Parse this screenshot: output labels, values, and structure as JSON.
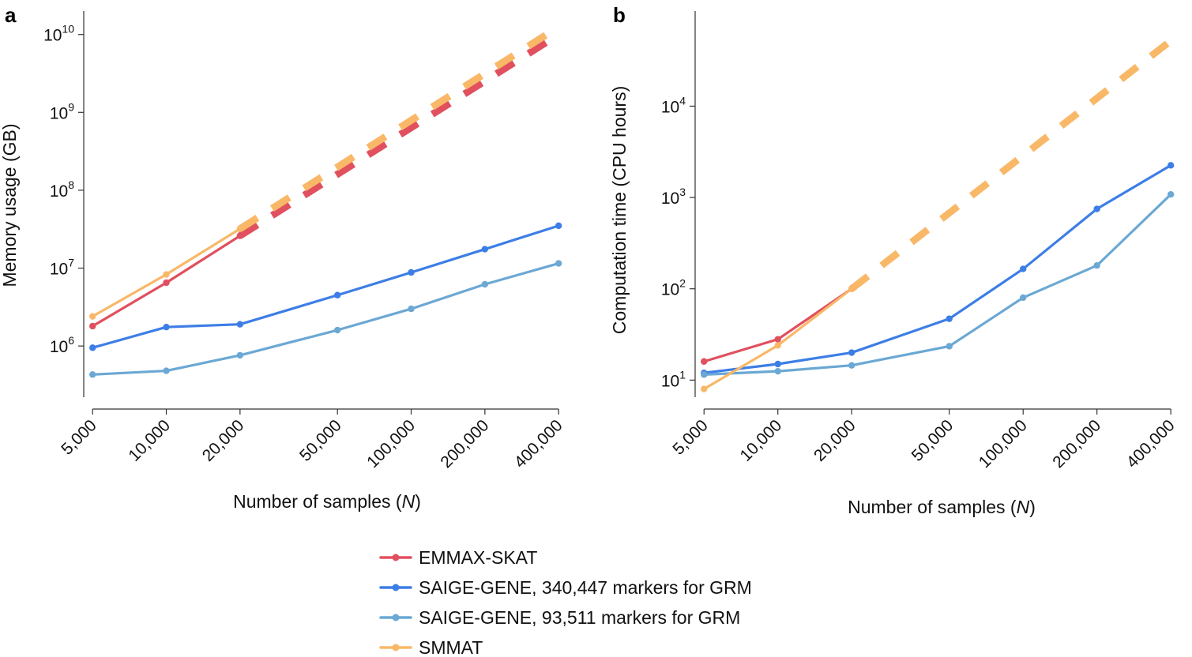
{
  "chart_data": [
    {
      "panel": "a",
      "type": "line",
      "ylabel": "Memory usage (GB)",
      "xlabel": "Number of samples (N)",
      "xscale": "log",
      "yscale": "log",
      "x_ticks": [
        5000,
        10000,
        20000,
        50000,
        100000,
        200000,
        400000
      ],
      "x_tick_labels": [
        "5,000",
        "10,000",
        "20,000",
        "50,000",
        "100,000",
        "200,000",
        "400,000"
      ],
      "y_ticks": [
        1000000,
        10000000,
        100000000,
        1000000000,
        10000000000
      ],
      "y_tick_labels": [
        {
          "base": "10",
          "exp": "6"
        },
        {
          "base": "10",
          "exp": "7"
        },
        {
          "base": "10",
          "exp": "8"
        },
        {
          "base": "10",
          "exp": "9"
        },
        {
          "base": "10",
          "exp": "10"
        }
      ],
      "ylim": [
        220000,
        20000000000
      ],
      "xlim": [
        4600,
        440000
      ],
      "series": [
        {
          "key": "emmax",
          "color": "#e0505e",
          "x": [
            5000,
            10000,
            20000
          ],
          "y": [
            1800000,
            6500000,
            26000000
          ],
          "extrapolated": {
            "x": [
              20000,
              400000
            ],
            "y": [
              26000000,
              10000000000
            ]
          }
        },
        {
          "key": "saige340",
          "color": "#3d7ee6",
          "x": [
            5000,
            10000,
            20000,
            50000,
            100000,
            200000,
            400000
          ],
          "y": [
            950000,
            1750000,
            1900000,
            4500000,
            8800000,
            17500000,
            35000000
          ]
        },
        {
          "key": "saige93",
          "color": "#6ba8d4",
          "x": [
            5000,
            10000,
            20000,
            50000,
            100000,
            200000,
            400000
          ],
          "y": [
            430000,
            480000,
            760000,
            1600000,
            3000000,
            6200000,
            11500000
          ]
        },
        {
          "key": "smmat",
          "color": "#f9b868",
          "x": [
            5000,
            10000,
            20000
          ],
          "y": [
            2400000,
            8300000,
            32000000
          ],
          "extrapolated": {
            "x": [
              20000,
              400000
            ],
            "y": [
              32000000,
              12500000000
            ]
          }
        }
      ]
    },
    {
      "panel": "b",
      "type": "line",
      "ylabel": "Computation time (CPU hours)",
      "xlabel": "Number of samples (N)",
      "xscale": "log",
      "yscale": "log",
      "x_ticks": [
        5000,
        10000,
        20000,
        50000,
        100000,
        200000,
        400000
      ],
      "x_tick_labels": [
        "5,000",
        "10,000",
        "20,000",
        "50,000",
        "100,000",
        "200,000",
        "400,000"
      ],
      "y_ticks": [
        10,
        100,
        1000,
        10000
      ],
      "y_tick_labels": [
        {
          "base": "10",
          "exp": "1"
        },
        {
          "base": "10",
          "exp": "2"
        },
        {
          "base": "10",
          "exp": "3"
        },
        {
          "base": "10",
          "exp": "4"
        }
      ],
      "ylim": [
        6.5,
        110000
      ],
      "xlim": [
        4600,
        440000
      ],
      "series": [
        {
          "key": "emmax",
          "color": "#e0505e",
          "x": [
            5000,
            10000,
            20000
          ],
          "y": [
            16,
            28,
            100
          ]
        },
        {
          "key": "saige340",
          "color": "#3d7ee6",
          "x": [
            5000,
            10000,
            20000,
            50000,
            100000,
            200000,
            400000
          ],
          "y": [
            12,
            15,
            20,
            47,
            165,
            750,
            2250
          ]
        },
        {
          "key": "saige93",
          "color": "#6ba8d4",
          "x": [
            5000,
            10000,
            20000,
            50000,
            100000,
            200000,
            400000
          ],
          "y": [
            11.5,
            12.5,
            14.5,
            23.5,
            80,
            180,
            1080
          ]
        },
        {
          "key": "smmat",
          "color": "#f9b868",
          "x": [
            5000,
            10000,
            20000
          ],
          "y": [
            8,
            24,
            100
          ],
          "extrapolated": {
            "x": [
              20000,
              400000
            ],
            "y": [
              100,
              52000
            ]
          }
        }
      ]
    }
  ],
  "legend": {
    "placement": "bottom-center",
    "items": [
      {
        "key": "emmax",
        "label": "EMMAX-SKAT",
        "color": "#e0505e"
      },
      {
        "key": "saige340",
        "label": "SAIGE-GENE, 340,447 markers for GRM",
        "color": "#3d7ee6"
      },
      {
        "key": "saige93",
        "label": "SAIGE-GENE, 93,511 markers for GRM",
        "color": "#6ba8d4"
      },
      {
        "key": "smmat",
        "label": "SMMAT",
        "color": "#f9b868"
      }
    ]
  },
  "xlabel_parts": {
    "prefix": "Number of samples (",
    "var": "N",
    "suffix": ")"
  }
}
